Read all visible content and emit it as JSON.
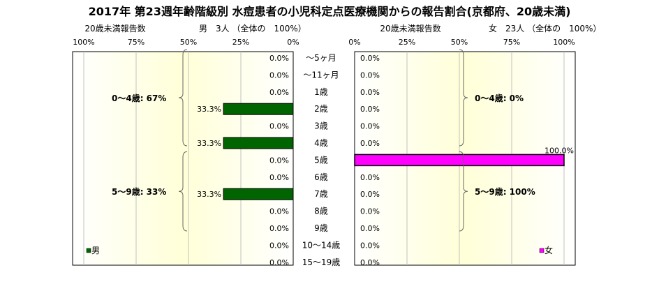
{
  "title": "2017年 第23週年齢階級別 水痘患者の小児科定点医療機関からの報告割合(京都府、20歳未満)",
  "left_header": {
    "axis_title": "20歳未満報告数",
    "summary": "男　3人 （全体の　100%）"
  },
  "right_header": {
    "axis_title": "20歳未満報告数",
    "summary": "女　23人 （全体の　100%）"
  },
  "colors": {
    "male_bar": "#006400",
    "female_bar": "#ff00ff",
    "panel_bg_center": "#ffffd8",
    "panel_bg_edge": "#ffffff"
  },
  "brackets": {
    "male": [
      {
        "label": "0～4歳: 67%",
        "from_index": 0,
        "to_index": 5
      },
      {
        "label": "5～9歳: 33%",
        "from_index": 6,
        "to_index": 10
      }
    ],
    "female": [
      {
        "label": "0～4歳: 0%",
        "from_index": 0,
        "to_index": 5
      },
      {
        "label": "5～9歳: 100%",
        "from_index": 6,
        "to_index": 10
      }
    ]
  },
  "chart_data": {
    "type": "bar",
    "orientation": "horizontal",
    "categories": [
      "～5ヶ月",
      "～11ヶ月",
      "1歳",
      "2歳",
      "3歳",
      "4歳",
      "5歳",
      "6歳",
      "7歳",
      "8歳",
      "9歳",
      "10～14歳",
      "15～19歳"
    ],
    "series": [
      {
        "name": "男",
        "values": [
          0,
          0,
          0,
          33.3,
          0,
          33.3,
          0,
          0,
          33.3,
          0,
          0,
          0,
          0
        ],
        "labels": [
          "0.0%",
          "0.0%",
          "0.0%",
          "33.3%",
          "0.0%",
          "33.3%",
          "0.0%",
          "0.0%",
          "33.3%",
          "0.0%",
          "0.0%",
          "0.0%",
          "0.0%"
        ],
        "xlim": [
          100,
          0
        ],
        "ticks": [
          "100%",
          "75%",
          "50%",
          "25%",
          "0%"
        ]
      },
      {
        "name": "女",
        "values": [
          0,
          0,
          0,
          0,
          0,
          0,
          100,
          0,
          0,
          0,
          0,
          0,
          0
        ],
        "labels": [
          "0.0%",
          "0.0%",
          "0.0%",
          "0.0%",
          "0.0%",
          "0.0%",
          "100.0%",
          "0.0%",
          "0.0%",
          "0.0%",
          "0.0%",
          "0.0%",
          "0.0%"
        ],
        "xlim": [
          0,
          100
        ],
        "ticks": [
          "0%",
          "25%",
          "50%",
          "75%",
          "100%"
        ]
      }
    ],
    "grid": true,
    "legend": [
      "男",
      "女"
    ]
  }
}
